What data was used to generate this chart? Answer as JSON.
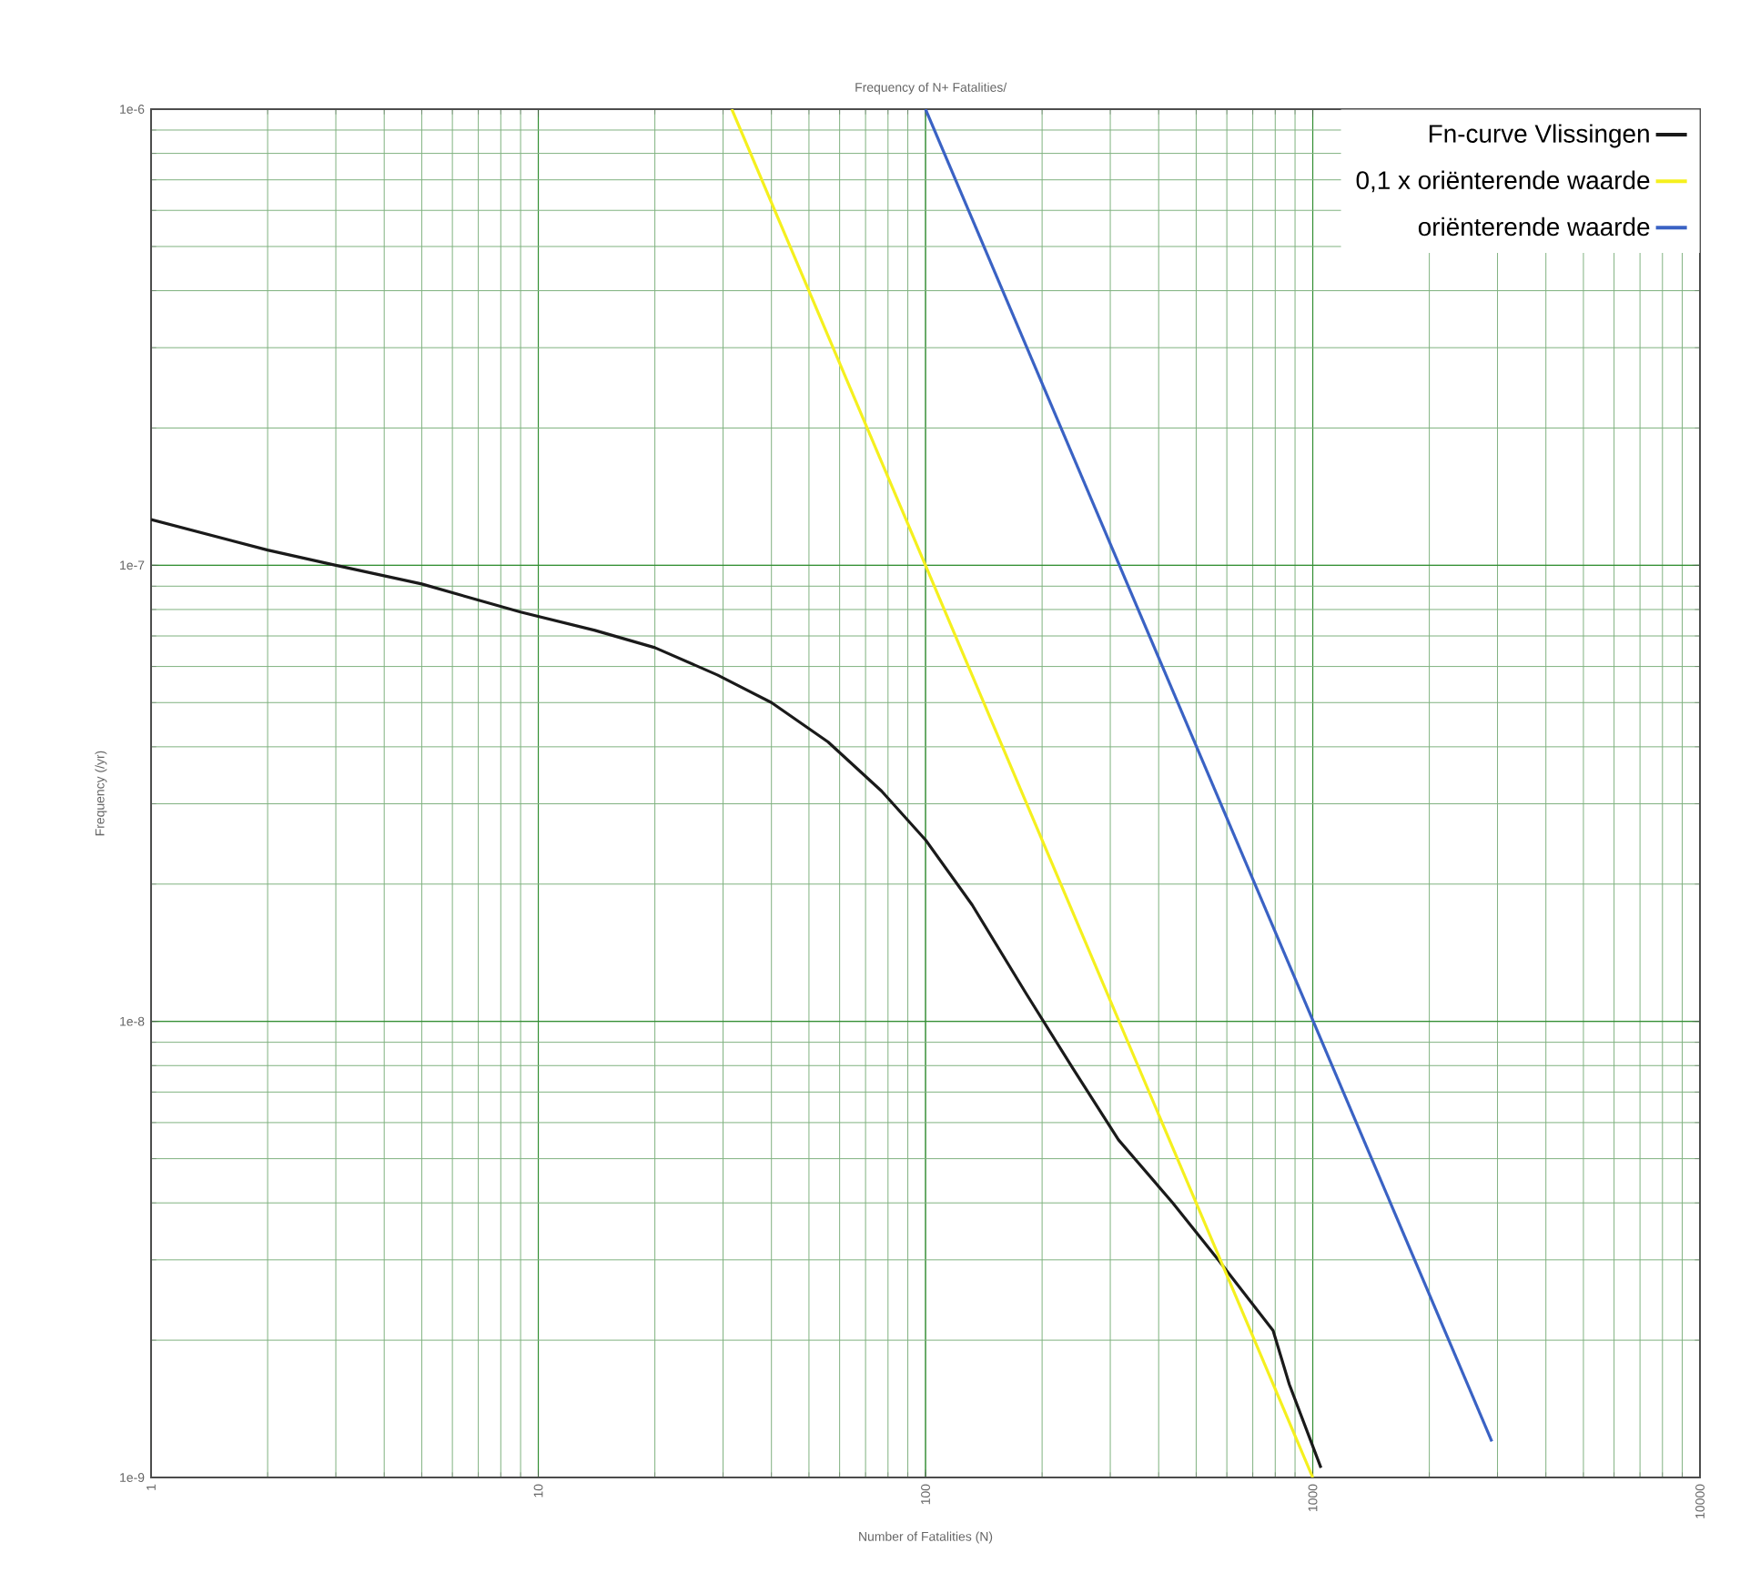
{
  "chart_data": {
    "type": "line",
    "title": "Frequency of N+ Fatalities/",
    "xlabel": "Number of Fatalities (N)",
    "ylabel": "Frequency (/yr)",
    "log": "xy",
    "grid": true,
    "legend": "top right",
    "line_style": "solid",
    "marker": "none",
    "xlim": [
      1,
      10000
    ],
    "ylim": [
      1e-09,
      1e-06
    ],
    "xticks": [
      1,
      10,
      100,
      1000,
      10000
    ],
    "yticks": [
      {
        "value": 1e-09,
        "label": "1e-9"
      },
      {
        "value": 1e-08,
        "label": "1e-8"
      },
      {
        "value": 1e-07,
        "label": "1e-7"
      },
      {
        "value": 1e-06,
        "label": "1e-6"
      }
    ],
    "series": [
      {
        "name": "Fn-curve Vlissingen",
        "color": "#1a1a1a",
        "x": [
          1,
          2,
          3,
          5,
          9,
          14,
          20,
          29,
          40,
          56,
          77,
          100,
          132,
          182,
          240,
          315,
          435,
          570,
          790,
          870,
          1050
        ],
        "values": [
          1.26e-07,
          1.08e-07,
          1e-07,
          9.1e-08,
          7.9e-08,
          7.2e-08,
          6.6e-08,
          5.75e-08,
          5e-08,
          4.1e-08,
          3.2e-08,
          2.5e-08,
          1.8e-08,
          1.15e-08,
          7.9e-09,
          5.5e-09,
          4e-09,
          3e-09,
          2.1e-09,
          1.6e-09,
          1.05e-09
        ]
      },
      {
        "name": "0,1 x oriënterende waarde",
        "color": "#f5f01e",
        "x": [
          31.6,
          1000
        ],
        "values": [
          1e-06,
          1e-09
        ]
      },
      {
        "name": "oriënterende waarde",
        "color": "#3a62c4",
        "x": [
          100,
          2900
        ],
        "values": [
          1e-06,
          1.2e-09
        ]
      }
    ]
  }
}
